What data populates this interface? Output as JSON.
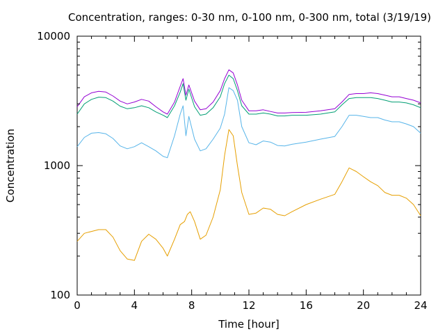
{
  "chart_data": {
    "type": "line",
    "title": "Concentration, ranges: 0-30 nm, 0-100 nm, 0-300 nm, total (3/19/19)",
    "xlabel": "Time [hour]",
    "ylabel": "Concentration",
    "xlim": [
      0,
      24
    ],
    "ylim": [
      100,
      10000
    ],
    "yscale": "log",
    "xticks": [
      0,
      4,
      8,
      12,
      16,
      20,
      24
    ],
    "xtick_labels": [
      "0",
      "4",
      "8",
      "12",
      "16",
      "20",
      "24"
    ],
    "yticks": [
      100,
      1000,
      10000
    ],
    "ytick_labels": [
      "100",
      "1000",
      "10000"
    ],
    "grid": false,
    "legend": "none",
    "series": [
      {
        "color": "#e69f00",
        "x": [
          0,
          0.5,
          1,
          1.5,
          2,
          2.5,
          3,
          3.5,
          4,
          4.5,
          5,
          5.5,
          6,
          6.3,
          6.8,
          7.2,
          7.5,
          7.7,
          7.9,
          8.2,
          8.6,
          9,
          9.5,
          10,
          10.3,
          10.6,
          10.9,
          11.2,
          11.5,
          12,
          12.5,
          13,
          13.5,
          14,
          14.5,
          15,
          16,
          17,
          18,
          18.5,
          19,
          19.5,
          20,
          20.5,
          21,
          21.5,
          22,
          22.5,
          23,
          23.5,
          24
        ],
        "y": [
          260,
          300,
          310,
          320,
          320,
          280,
          220,
          190,
          185,
          260,
          295,
          270,
          230,
          200,
          270,
          350,
          370,
          420,
          440,
          370,
          270,
          290,
          400,
          650,
          1200,
          1900,
          1700,
          1000,
          620,
          420,
          430,
          470,
          460,
          420,
          410,
          440,
          500,
          550,
          600,
          750,
          960,
          900,
          820,
          750,
          700,
          620,
          590,
          590,
          560,
          500,
          410
        ]
      },
      {
        "color": "#56b4e9",
        "x": [
          0,
          0.5,
          1,
          1.5,
          2,
          2.5,
          3,
          3.5,
          4,
          4.5,
          5,
          5.5,
          6,
          6.3,
          6.8,
          7.2,
          7.4,
          7.6,
          7.8,
          8.2,
          8.6,
          9,
          9.5,
          10,
          10.3,
          10.6,
          10.9,
          11.2,
          11.5,
          12,
          12.5,
          13,
          13.5,
          14,
          14.5,
          15,
          16,
          17,
          18,
          18.5,
          19,
          19.5,
          20,
          20.5,
          21,
          21.5,
          22,
          22.5,
          23,
          23.5,
          24
        ],
        "y": [
          1400,
          1650,
          1780,
          1800,
          1760,
          1620,
          1420,
          1350,
          1400,
          1500,
          1400,
          1300,
          1180,
          1150,
          1700,
          2500,
          2900,
          1700,
          2400,
          1600,
          1300,
          1350,
          1600,
          1950,
          2500,
          4000,
          3800,
          3200,
          2000,
          1500,
          1450,
          1550,
          1520,
          1430,
          1420,
          1460,
          1520,
          1600,
          1680,
          2000,
          2450,
          2450,
          2400,
          2350,
          2350,
          2250,
          2180,
          2180,
          2100,
          2000,
          1780
        ]
      },
      {
        "color": "#009e73",
        "x": [
          0,
          0.5,
          1,
          1.5,
          2,
          2.5,
          3,
          3.5,
          4,
          4.5,
          5,
          5.5,
          6,
          6.3,
          6.8,
          7.2,
          7.4,
          7.6,
          7.8,
          8.2,
          8.6,
          9,
          9.5,
          10,
          10.3,
          10.6,
          10.9,
          11.2,
          11.5,
          12,
          12.5,
          13,
          13.5,
          14,
          14.5,
          15,
          16,
          17,
          18,
          18.5,
          19,
          19.5,
          20,
          20.5,
          21,
          21.5,
          22,
          22.5,
          23,
          23.5,
          24
        ],
        "y": [
          2500,
          3000,
          3250,
          3380,
          3350,
          3150,
          2880,
          2750,
          2800,
          2900,
          2800,
          2600,
          2450,
          2350,
          2900,
          3700,
          4300,
          3200,
          3900,
          2850,
          2450,
          2500,
          2800,
          3400,
          4300,
          5000,
          4700,
          3800,
          2900,
          2500,
          2500,
          2550,
          2500,
          2420,
          2420,
          2450,
          2450,
          2500,
          2600,
          2950,
          3300,
          3350,
          3350,
          3350,
          3300,
          3200,
          3100,
          3100,
          3050,
          2950,
          2800
        ]
      },
      {
        "color": "#9400d3",
        "x": [
          0,
          0.5,
          1,
          1.5,
          2,
          2.5,
          3,
          3.5,
          4,
          4.5,
          5,
          5.5,
          6,
          6.3,
          6.8,
          7.2,
          7.4,
          7.6,
          7.8,
          8.2,
          8.6,
          9,
          9.5,
          10,
          10.3,
          10.6,
          10.9,
          11.2,
          11.5,
          12,
          12.5,
          13,
          13.5,
          14,
          14.5,
          15,
          16,
          17,
          18,
          18.5,
          19,
          19.5,
          20,
          20.5,
          21,
          21.5,
          22,
          22.5,
          23,
          23.5,
          24
        ],
        "y": [
          2850,
          3400,
          3650,
          3750,
          3700,
          3450,
          3150,
          3000,
          3100,
          3250,
          3150,
          2850,
          2600,
          2500,
          3100,
          4100,
          4700,
          3500,
          4200,
          3150,
          2700,
          2750,
          3100,
          3800,
          4700,
          5500,
          5200,
          4200,
          3200,
          2650,
          2650,
          2700,
          2620,
          2550,
          2550,
          2570,
          2580,
          2650,
          2750,
          3100,
          3550,
          3600,
          3600,
          3650,
          3600,
          3500,
          3400,
          3400,
          3300,
          3200,
          3050
        ]
      }
    ]
  }
}
